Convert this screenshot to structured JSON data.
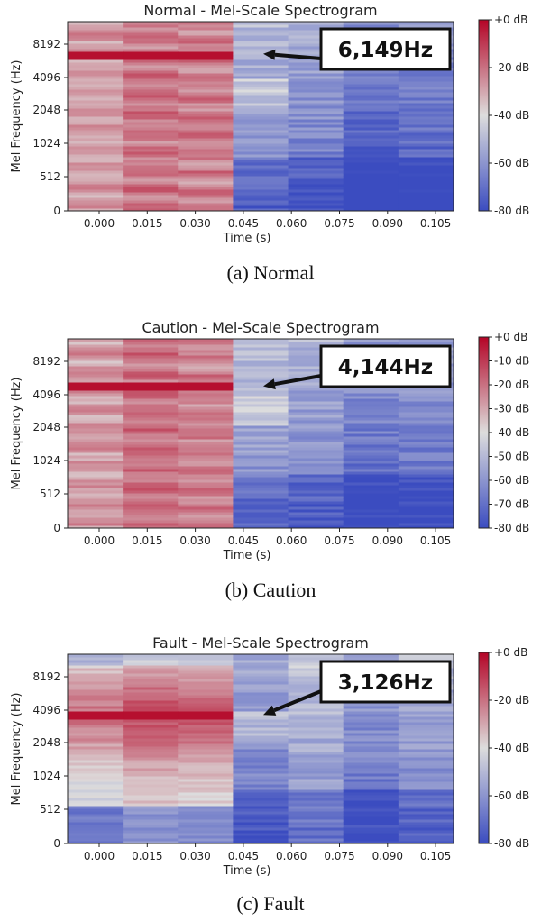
{
  "colors": {
    "scale_low": "#3b4cc0",
    "scale_mid": "#dddddd",
    "scale_high": "#b40426",
    "arrow": "#111111",
    "callout_border": "#111111"
  },
  "chart_data": [
    {
      "type": "heatmap",
      "caption": "(a)  Normal",
      "title": "Normal - Mel-Scale Spectrogram",
      "xlabel": "Time (s)",
      "ylabel": "Mel Frequency (Hz)",
      "x_ticks": [
        "0.000",
        "0.015",
        "0.030",
        "0.045",
        "0.060",
        "0.075",
        "0.090",
        "0.105"
      ],
      "y_ticks": [
        "0",
        "512",
        "1024",
        "2048",
        "4096",
        "8192"
      ],
      "colorbar_ticks": [
        "+0 dB",
        "-20 dB",
        "-40 dB",
        "-60 dB",
        "-80 dB"
      ],
      "colorbar_range": [
        -80,
        0
      ],
      "annotation": {
        "text": "6,149Hz",
        "frequency": 6149
      },
      "time_frames_db": [
        -22,
        -15,
        -17,
        -62,
        -65,
        -75,
        -72
      ],
      "peak_band_position": 0.83
    },
    {
      "type": "heatmap",
      "caption": "(b)  Caution",
      "title": "Caution - Mel-Scale Spectrogram",
      "xlabel": "Time (s)",
      "ylabel": "Mel Frequency (Hz)",
      "x_ticks": [
        "0.000",
        "0.015",
        "0.030",
        "0.045",
        "0.060",
        "0.075",
        "0.090",
        "0.105"
      ],
      "y_ticks": [
        "0",
        "512",
        "1024",
        "2048",
        "4096",
        "8192"
      ],
      "colorbar_ticks": [
        "+0 dB",
        "-10 dB",
        "-20 dB",
        "-30 dB",
        "-40 dB",
        "-50 dB",
        "-60 dB",
        "-70 dB",
        "-80 dB"
      ],
      "colorbar_range": [
        -80,
        0
      ],
      "annotation": {
        "text": "4,144Hz",
        "frequency": 4144
      },
      "time_frames_db": [
        -22,
        -15,
        -17,
        -60,
        -63,
        -70,
        -68
      ],
      "peak_band_position": 0.75
    },
    {
      "type": "heatmap",
      "caption": "(c)  Fault",
      "title": "Fault - Mel-Scale Spectrogram",
      "xlabel": "Time (s)",
      "ylabel": "Mel Frequency (Hz)",
      "x_ticks": [
        "0.000",
        "0.015",
        "0.030",
        "0.045",
        "0.060",
        "0.075",
        "0.090",
        "0.105"
      ],
      "y_ticks": [
        "0",
        "512",
        "1024",
        "2048",
        "4096",
        "8192"
      ],
      "colorbar_ticks": [
        "+0 dB",
        "-20 dB",
        "-40 dB",
        "-60 dB",
        "-80 dB"
      ],
      "colorbar_range": [
        -80,
        0
      ],
      "annotation": {
        "text": "3,126Hz",
        "frequency": 3126
      },
      "time_frames_db": [
        -25,
        -18,
        -20,
        -66,
        -58,
        -68,
        -62
      ],
      "peak_band_position": 0.68
    }
  ]
}
